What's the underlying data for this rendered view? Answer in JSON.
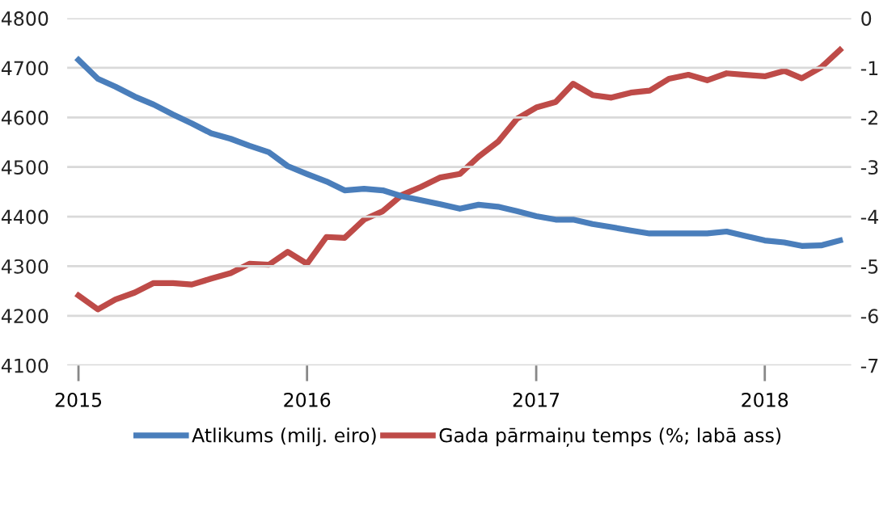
{
  "chart_data": {
    "type": "line",
    "x": [
      "2015-01",
      "2015-02",
      "2015-03",
      "2015-04",
      "2015-05",
      "2015-06",
      "2015-07",
      "2015-08",
      "2015-09",
      "2015-10",
      "2015-11",
      "2015-12",
      "2016-01",
      "2016-02",
      "2016-03",
      "2016-04",
      "2016-05",
      "2016-06",
      "2016-07",
      "2016-08",
      "2016-09",
      "2016-10",
      "2016-11",
      "2016-12",
      "2017-01",
      "2017-02",
      "2017-03",
      "2017-04",
      "2017-05",
      "2017-06",
      "2017-07",
      "2017-08",
      "2017-09",
      "2017-10",
      "2017-11",
      "2017-12",
      "2018-01",
      "2018-02",
      "2018-03",
      "2018-04",
      "2018-05"
    ],
    "series": [
      {
        "name": "Atlikums (milj. eiro)",
        "color": "#4a7ebb",
        "values": [
          4716,
          4678,
          4662,
          4642,
          4626,
          4606,
          4588,
          4568,
          4557,
          4543,
          4530,
          4502,
          4486,
          4471,
          4453,
          4456,
          4453,
          4441,
          4433,
          4425,
          4416,
          4424,
          4420,
          4411,
          4401,
          4394,
          4394,
          4385,
          4379,
          4372,
          4366,
          4366,
          4366,
          4366,
          4370,
          4361,
          4352,
          4348,
          4341,
          4342,
          4352
        ]
      },
      {
        "name": "Gada pārmaiņu temps (%; labā ass)",
        "color": "#be4b48",
        "axis": "y2",
        "values": [
          -5.59,
          -5.87,
          -5.67,
          -5.53,
          -5.34,
          -5.34,
          -5.37,
          -5.25,
          -5.14,
          -4.95,
          -4.97,
          -4.71,
          -4.95,
          -4.41,
          -4.43,
          -4.06,
          -3.89,
          -3.56,
          -3.4,
          -3.21,
          -3.14,
          -2.79,
          -2.49,
          -2.03,
          -1.8,
          -1.69,
          -1.32,
          -1.55,
          -1.6,
          -1.5,
          -1.46,
          -1.22,
          -1.14,
          -1.25,
          -1.11,
          -1.14,
          -1.17,
          -1.06,
          -1.21,
          -0.99,
          -0.64
        ]
      }
    ],
    "xlim": [
      "2014-12-14",
      "2018-05-19"
    ],
    "xticks": [
      {
        "value": "2015-01",
        "label": "2015"
      },
      {
        "value": "2016-01",
        "label": "2016"
      },
      {
        "value": "2017-01",
        "label": "2017"
      },
      {
        "value": "2018-01",
        "label": "2018"
      }
    ],
    "ylim": [
      4100,
      4800
    ],
    "yticks": [
      4100,
      4200,
      4300,
      4400,
      4500,
      4600,
      4700,
      4800
    ],
    "y2lim": [
      -7,
      0
    ],
    "y2ticks": [
      -7,
      -6,
      -5,
      -4,
      -3,
      -2,
      -1,
      0
    ],
    "grid": "y",
    "legend": "bottom",
    "marker": "none",
    "line_style": "solid"
  }
}
